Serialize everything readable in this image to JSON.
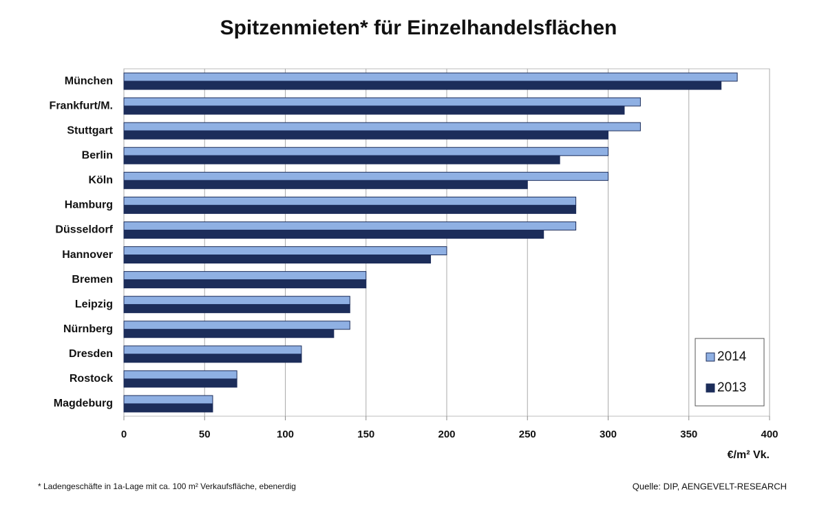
{
  "chart_data": {
    "type": "hbar",
    "title": "Spitzenmieten* für Einzelhandelsflächen",
    "categories": [
      "München",
      "Frankfurt/M.",
      "Stuttgart",
      "Berlin",
      "Köln",
      "Hamburg",
      "Düsseldorf",
      "Hannover",
      "Bremen",
      "Leipzig",
      "Nürnberg",
      "Dresden",
      "Rostock",
      "Magdeburg"
    ],
    "series": [
      {
        "name": "2014",
        "color": "#8fb0e3",
        "values": [
          380,
          320,
          320,
          300,
          300,
          280,
          280,
          200,
          150,
          140,
          140,
          110,
          70,
          55
        ]
      },
      {
        "name": "2013",
        "color": "#1c2d5a",
        "values": [
          370,
          310,
          300,
          270,
          250,
          280,
          260,
          190,
          150,
          140,
          130,
          110,
          70,
          55
        ]
      }
    ],
    "xlim": [
      0,
      400
    ],
    "xticks": [
      0,
      50,
      100,
      150,
      200,
      250,
      300,
      350,
      400
    ],
    "x_label": "€/m² Vk.",
    "grid": true,
    "legend_position": "lower right",
    "footnote": "* Ladengeschäfte in 1a-Lage mit ca. 100 m² Verkaufsfläche, ebenerdig",
    "source": "Quelle: DIP, AENGEVELT-RESEARCH"
  }
}
